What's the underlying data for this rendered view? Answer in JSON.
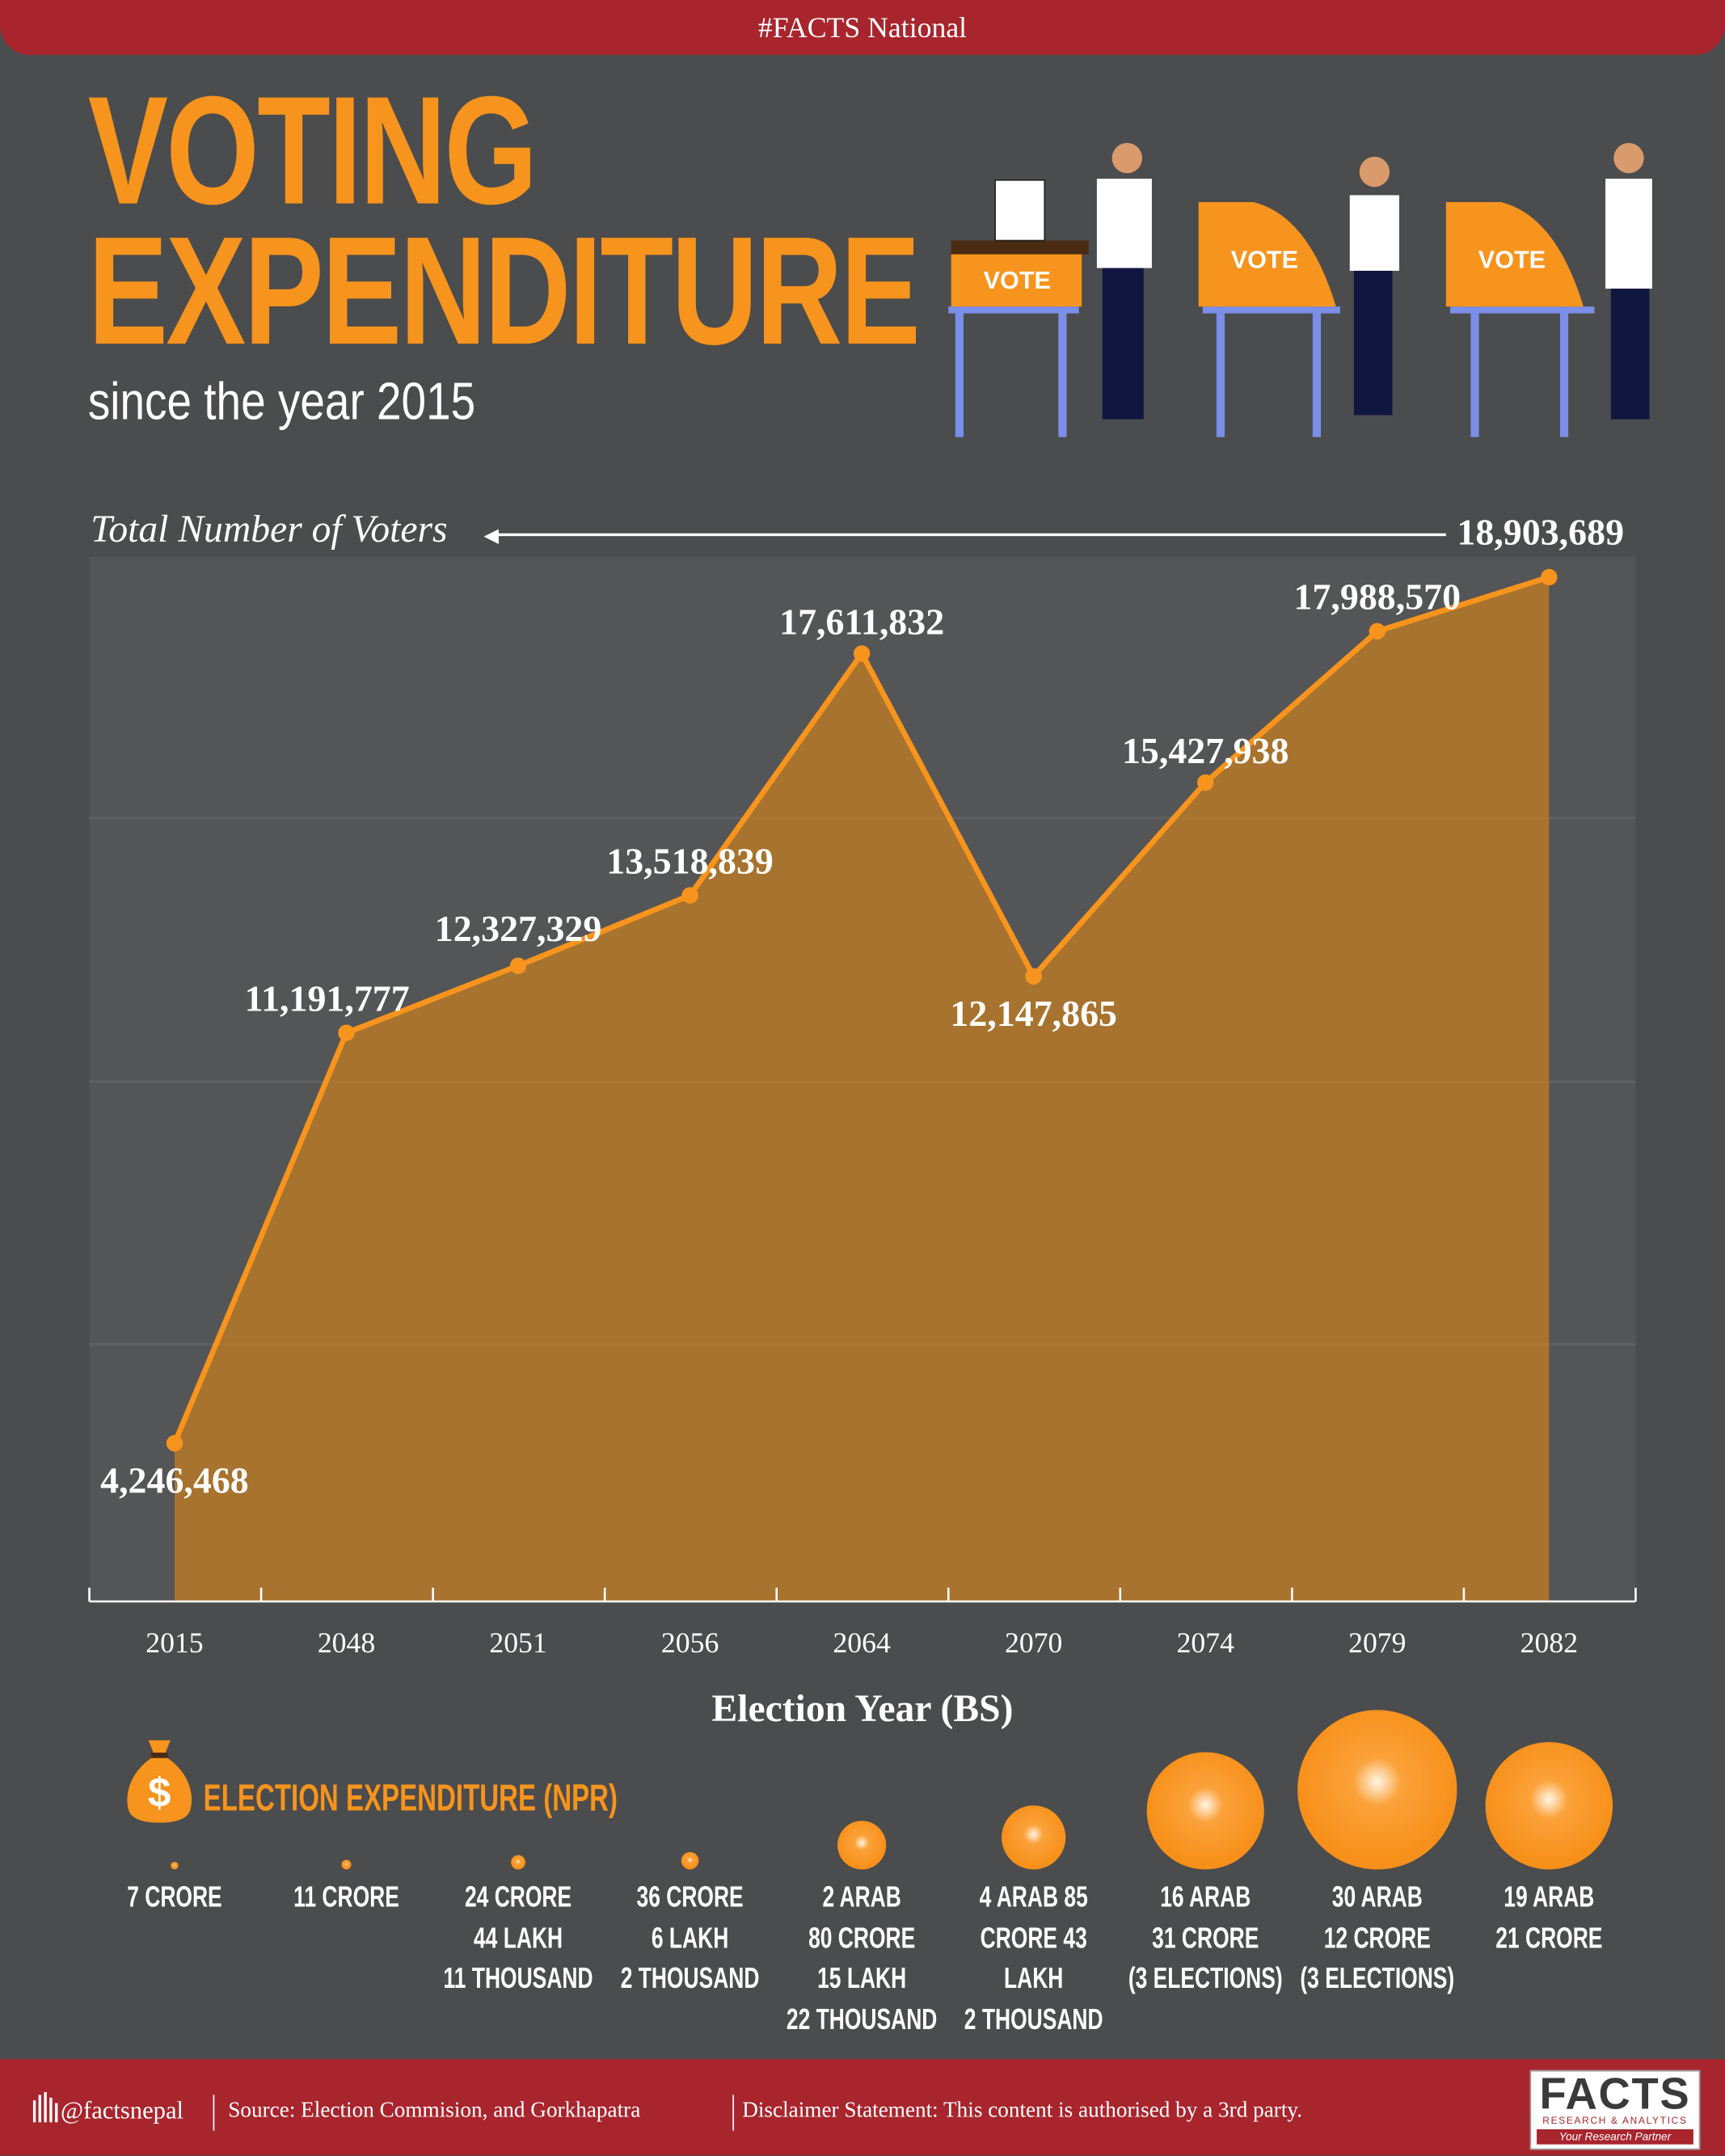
{
  "header": {
    "tag": "#FACTS National",
    "title_line1": "VOTING",
    "title_line2": "EXPENDITURE",
    "subtitle": "since the year 2015",
    "illustration_text": "VOTE"
  },
  "colors": {
    "accent": "#f7941d",
    "brand_red": "#a8252d",
    "background": "#4b4c4d",
    "text": "#ffffff"
  },
  "chart_data": {
    "type": "area",
    "ylabel": "Total Number of Voters",
    "xlabel": "Election Year (BS)",
    "categories": [
      "2015",
      "2048",
      "2051",
      "2056",
      "2064",
      "2070",
      "2074",
      "2079",
      "2082"
    ],
    "series": [
      {
        "values": [
          4246468,
          11191777,
          12327329,
          13518839,
          17611832,
          12147865,
          15427938,
          17988570,
          18903689
        ]
      }
    ],
    "data_labels": [
      "4,246,468",
      "11,191,777",
      "12,327,329",
      "13,518,839",
      "17,611,832",
      "12,147,865",
      "15,427,938",
      "17,988,570",
      "18,903,689"
    ],
    "grid": true
  },
  "expenditure": {
    "title": "ELECTION EXPENDITURE (NPR)",
    "icon": "money-bag-icon",
    "items": [
      {
        "value_crore": 7,
        "lines": [
          "7 CRORE"
        ]
      },
      {
        "value_crore": 11,
        "lines": [
          "11 CRORE"
        ]
      },
      {
        "value_crore": 24.44,
        "lines": [
          "24 CRORE",
          "44 LAKH",
          "11 THOUSAND"
        ]
      },
      {
        "value_crore": 36.06,
        "lines": [
          "36 CRORE",
          "6 LAKH",
          "2 THOUSAND"
        ]
      },
      {
        "value_crore": 280.15,
        "lines": [
          "2 ARAB",
          "80 CRORE",
          "15 LAKH",
          "22 THOUSAND"
        ]
      },
      {
        "value_crore": 485.43,
        "lines": [
          "4 ARAB 85",
          "CRORE 43",
          "LAKH",
          "2 THOUSAND"
        ]
      },
      {
        "value_crore": 1631,
        "lines": [
          "16 ARAB",
          "31 CRORE",
          "(3 ELECTIONS)"
        ]
      },
      {
        "value_crore": 3012,
        "lines": [
          "30 ARAB",
          "12 CRORE",
          "(3 ELECTIONS)"
        ]
      },
      {
        "value_crore": 1921,
        "lines": [
          "19 ARAB",
          "21 CRORE"
        ]
      }
    ]
  },
  "footer": {
    "handle": "@factsnepal",
    "source": "Source: Election Commision, and  Gorkhapatra",
    "disclaimer": "Disclaimer Statement: This content is authorised by a 3rd party.",
    "logo_text": "FACTS",
    "logo_sub": "RESEARCH & ANALYTICS",
    "logo_tagline": "Your Research Partner"
  }
}
